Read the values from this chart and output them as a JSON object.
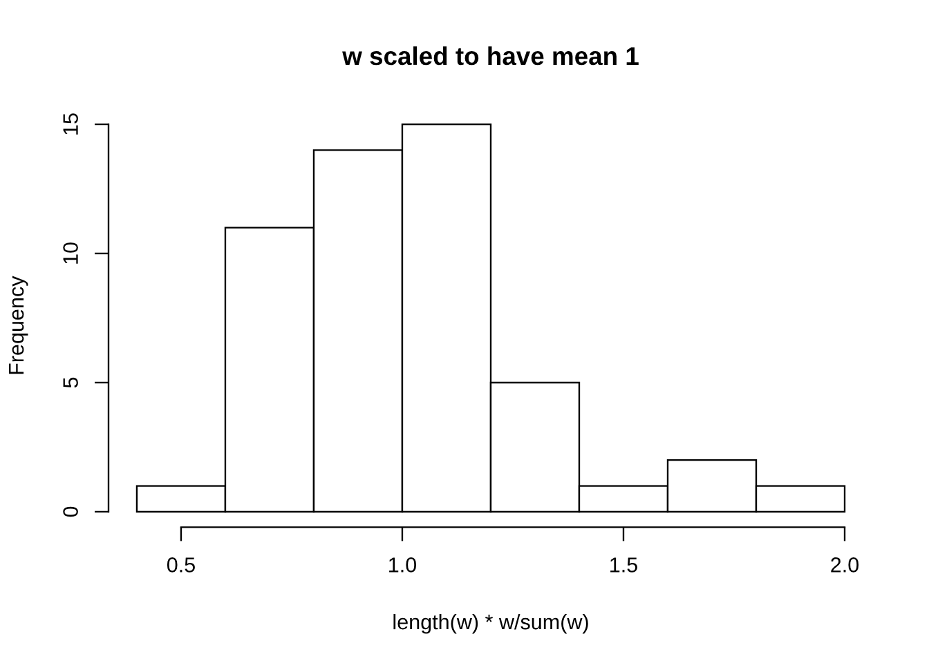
{
  "chart_data": {
    "type": "histogram",
    "title": "w scaled to have mean 1",
    "xlabel": "length(w) * w/sum(w)",
    "ylabel": "Frequency",
    "bins": [
      0.4,
      0.6,
      0.8,
      1.0,
      1.2,
      1.4,
      1.6,
      1.8,
      2.0
    ],
    "values": [
      1,
      11,
      14,
      15,
      5,
      1,
      2,
      1
    ],
    "color": "#ffffff",
    "xlim": [
      0.336,
      2.0
    ],
    "xticks": [
      0.5,
      {
        "value": 1,
        "label": "1.0"
      },
      1.5,
      {
        "value": 2,
        "label": "2.0"
      }
    ],
    "ylim": [
      -0.6,
      15
    ],
    "yticks": [
      0,
      5,
      10,
      15
    ]
  }
}
